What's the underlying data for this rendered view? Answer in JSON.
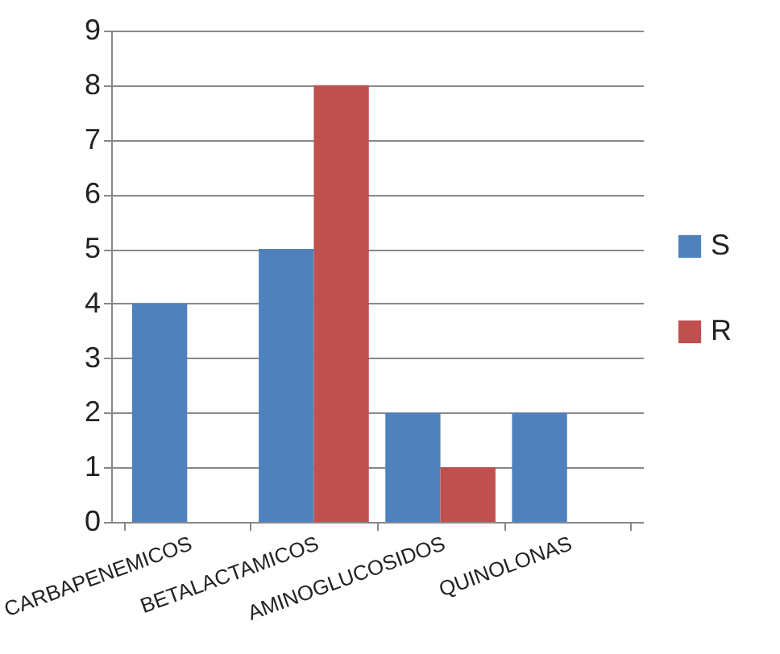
{
  "chart_data": {
    "type": "bar",
    "categories": [
      "CARBAPENEMICOS",
      "BETALACTAMICOS",
      "AMINOGLUCOSIDOS",
      "QUINOLONAS"
    ],
    "series": [
      {
        "name": "S",
        "color": "#4f81bd",
        "values": [
          4,
          5,
          2,
          2
        ]
      },
      {
        "name": "R",
        "color": "#c0504d",
        "values": [
          0,
          8,
          1,
          0
        ]
      }
    ],
    "ylim": [
      0,
      9
    ],
    "yticks": [
      0,
      1,
      2,
      3,
      4,
      5,
      6,
      7,
      8,
      9
    ],
    "grid": "y",
    "legend": "right"
  }
}
